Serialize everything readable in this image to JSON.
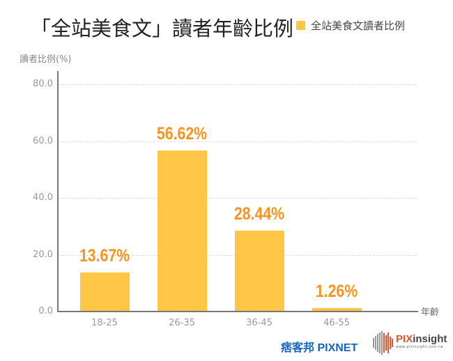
{
  "chart_data": {
    "type": "bar",
    "title": "「全站美食文」讀者年齡比例",
    "legend": [
      "全站美食文讀者比例"
    ],
    "legend_position": "top-right",
    "xlabel": "年齡",
    "ylabel": "讀者比例(%)",
    "categories": [
      "18-25",
      "26-35",
      "36-45",
      "46-55"
    ],
    "series": [
      {
        "name": "全站美食文讀者比例",
        "values": [
          13.67,
          56.62,
          28.44,
          1.26
        ]
      }
    ],
    "data_labels": [
      "13.67%",
      "56.62%",
      "28.44%",
      "1.26%"
    ],
    "ylim": [
      0,
      80
    ],
    "yticks": [
      "0.0",
      "20.0",
      "40.0",
      "60.0",
      "80.0"
    ],
    "grid": true
  },
  "colors": {
    "bar": "#FFC745",
    "label": "#F7941D",
    "axis": "#777777",
    "grid": "#DDDDDD"
  },
  "logos": {
    "pixnet": "痞客邦 PIXNET",
    "pixinsight_brand_a": "PIX",
    "pixinsight_brand_b": "insight",
    "pixinsight_url": "www.pixinsight.com.tw"
  }
}
